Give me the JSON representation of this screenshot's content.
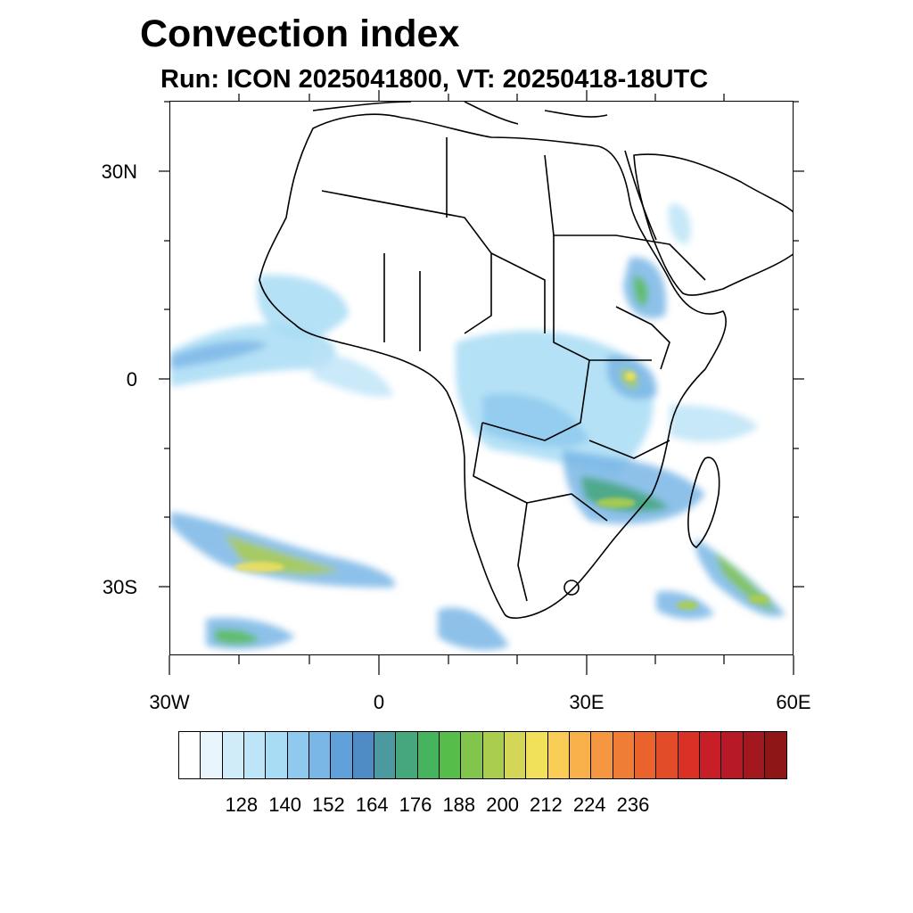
{
  "title": "Convection index",
  "subtitle": "Run: ICON 2025041800,  VT: 20250418-18UTC",
  "map": {
    "lon_range": [
      -30,
      60
    ],
    "lat_range": [
      -40,
      40
    ],
    "lat_labels": [
      "30N",
      "0",
      "30S"
    ],
    "lon_labels": [
      "30W",
      "0",
      "30E",
      "60E"
    ]
  },
  "colorbar": {
    "colors": [
      "#ffffff",
      "#e8f5fc",
      "#d1ecf9",
      "#bde4f7",
      "#a8dcf5",
      "#8fcaee",
      "#7ab6e6",
      "#5fa1d8",
      "#4f8cc6",
      "#4a9aa0",
      "#47a77c",
      "#46b45d",
      "#56bd4a",
      "#82c54c",
      "#abcd4f",
      "#d3d656",
      "#f1e15a",
      "#f9cc55",
      "#f8b04b",
      "#f49740",
      "#ef7d36",
      "#ea622c",
      "#e34c28",
      "#da3127",
      "#c81e28",
      "#b71a26",
      "#a3181f",
      "#8f1616"
    ],
    "labels": [
      "128",
      "140",
      "152",
      "164",
      "176",
      "188",
      "200",
      "212",
      "224",
      "236"
    ]
  },
  "chart_data": {
    "type": "heatmap",
    "title": "Convection index",
    "subtitle": "Run: ICON 2025041800,  VT: 20250418-18UTC",
    "x_range": [
      -30,
      60
    ],
    "y_range": [
      -40,
      40
    ],
    "x_ticks": [
      "30W",
      "0",
      "30E",
      "60E"
    ],
    "y_ticks": [
      "30N",
      "0",
      "30S"
    ],
    "colorbar_ticks": [
      128,
      140,
      152,
      164,
      176,
      188,
      200,
      212,
      224,
      236
    ],
    "regions": [
      {
        "lon": -27,
        "lat": 2,
        "value": 145
      },
      {
        "lon": -10,
        "lat": 8,
        "value": 150
      },
      {
        "lon": 15,
        "lat": -3,
        "value": 150
      },
      {
        "lon": 24,
        "lat": 4,
        "value": 145
      },
      {
        "lon": 37,
        "lat": 13,
        "value": 165
      },
      {
        "lon": 35,
        "lat": 1,
        "value": 175
      },
      {
        "lon": 33,
        "lat": -17,
        "value": 170
      },
      {
        "lon": 52,
        "lat": -28,
        "value": 175
      },
      {
        "lon": -15,
        "lat": -27,
        "value": 185
      },
      {
        "lon": 45,
        "lat": -32,
        "value": 170
      },
      {
        "lon": -25,
        "lat": -38,
        "value": 160
      },
      {
        "lon": 13,
        "lat": -36,
        "value": 150
      }
    ]
  }
}
